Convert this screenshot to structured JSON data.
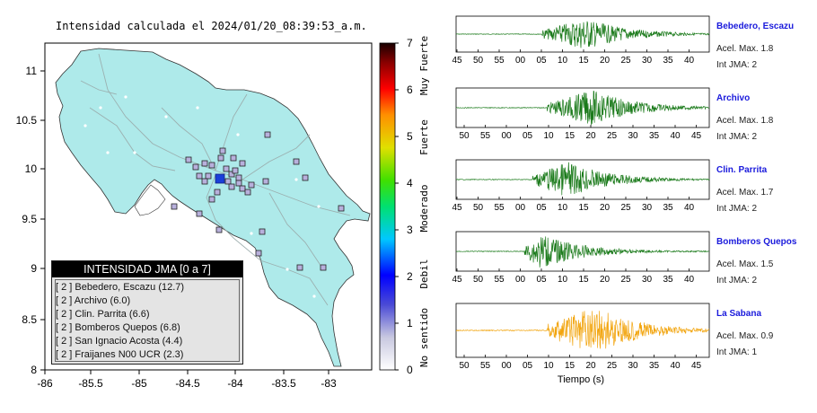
{
  "map": {
    "title": "Intensidad calculada el 2024/01/20_08:39:53_a.m.",
    "lon_ticks": [
      "-86",
      "-85.5",
      "-85",
      "-84.5",
      "-84",
      "-83.5",
      "-83"
    ],
    "lat_ticks": [
      "11",
      "10.5",
      "10",
      "9.5",
      "9",
      "8.5",
      "8"
    ],
    "land_color": "#aeeaea",
    "epicenter_color": "#1a3fd9"
  },
  "colorbar": {
    "ticks": [
      "7",
      "6",
      "5",
      "4",
      "3",
      "2",
      "1",
      "0"
    ],
    "labels": [
      "Muy Fuerte",
      "Fuerte",
      "Moderado",
      "Debil",
      "No sentido"
    ]
  },
  "legend": {
    "title": "INTENSIDAD JMA [0 a 7]",
    "items": [
      "[ 2 ]  Bebedero, Escazu (12.7)",
      "[ 2 ]  Archivo (6.0)",
      "[ 2 ]  Clin. Parrita (6.6)",
      "[ 2 ]  Bomberos Quepos (6.8)",
      "[ 2 ]  San Ignacio Acosta (4.4)",
      "[ 2 ]  Fraijanes N00 UCR (2.3)"
    ]
  },
  "waveforms": [
    {
      "name": "Bebedero, Escazu",
      "accel": "Acel. Max. 1.8",
      "jma": "Int JMA: 2",
      "color": "#1a7a1a",
      "ticks": [
        "45",
        "50",
        "55",
        "00",
        "05",
        "10",
        "15",
        "20",
        "25",
        "30",
        "35",
        "40"
      ]
    },
    {
      "name": "Archivo",
      "accel": "Acel. Max. 1.8",
      "jma": "Int JMA: 2",
      "color": "#1a7a1a",
      "ticks": [
        "50",
        "55",
        "00",
        "05",
        "10",
        "15",
        "20",
        "25",
        "30",
        "35",
        "40",
        "45"
      ]
    },
    {
      "name": "Clin. Parrita",
      "accel": "Acel. Max. 1.7",
      "jma": "Int JMA: 2",
      "color": "#1a7a1a",
      "ticks": [
        "45",
        "50",
        "55",
        "00",
        "05",
        "10",
        "15",
        "20",
        "25",
        "30",
        "35",
        "40"
      ]
    },
    {
      "name": "Bomberos Quepos",
      "accel": "Acel. Max. 1.5",
      "jma": "Int JMA: 2",
      "color": "#1a7a1a",
      "ticks": [
        "45",
        "50",
        "55",
        "00",
        "05",
        "10",
        "15",
        "20",
        "25",
        "30",
        "35",
        "40"
      ]
    },
    {
      "name": "La Sabana",
      "accel": "Acel. Max. 0.9",
      "jma": "Int JMA: 1",
      "color": "#f2a50f",
      "ticks": [
        "50",
        "55",
        "00",
        "05",
        "10",
        "15",
        "20",
        "25",
        "30",
        "35",
        "40",
        "45"
      ]
    }
  ],
  "x_axis_label": "Tiempo (s)"
}
